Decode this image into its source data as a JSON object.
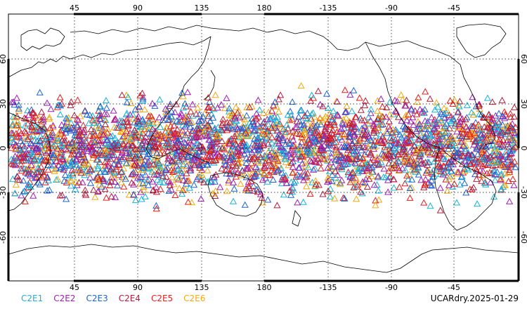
{
  "map": {
    "lon_ticks_top": [
      "45",
      "90",
      "135",
      "180",
      "-135",
      "-90",
      "-45"
    ],
    "lon_ticks_bottom": [
      "45",
      "90",
      "135",
      "180",
      "-135",
      "-90",
      "-45"
    ],
    "lat_ticks_left": [
      "60",
      "30",
      "0",
      "-30",
      "-60"
    ],
    "lat_ticks_right": [
      "60",
      "30",
      "0",
      "-30",
      "-60"
    ],
    "grid_lines": "dotted",
    "marker_shape": "triangle-outline",
    "lat_range": [
      -90,
      90
    ],
    "lon_range": [
      0,
      360
    ],
    "observation_lat_band": [
      -45,
      45
    ]
  },
  "legend": {
    "items": [
      {
        "label": "C2E1",
        "color": "#19b4d2"
      },
      {
        "label": "C2E2",
        "color": "#a01eb4"
      },
      {
        "label": "C2E3",
        "color": "#1e64d2"
      },
      {
        "label": "C2E4",
        "color": "#b41e3c"
      },
      {
        "label": "C2E5",
        "color": "#e61e1e"
      },
      {
        "label": "C2E6",
        "color": "#f0aa14"
      }
    ]
  },
  "footer": {
    "dataset_label": "UCARdry.2025-01-29"
  }
}
